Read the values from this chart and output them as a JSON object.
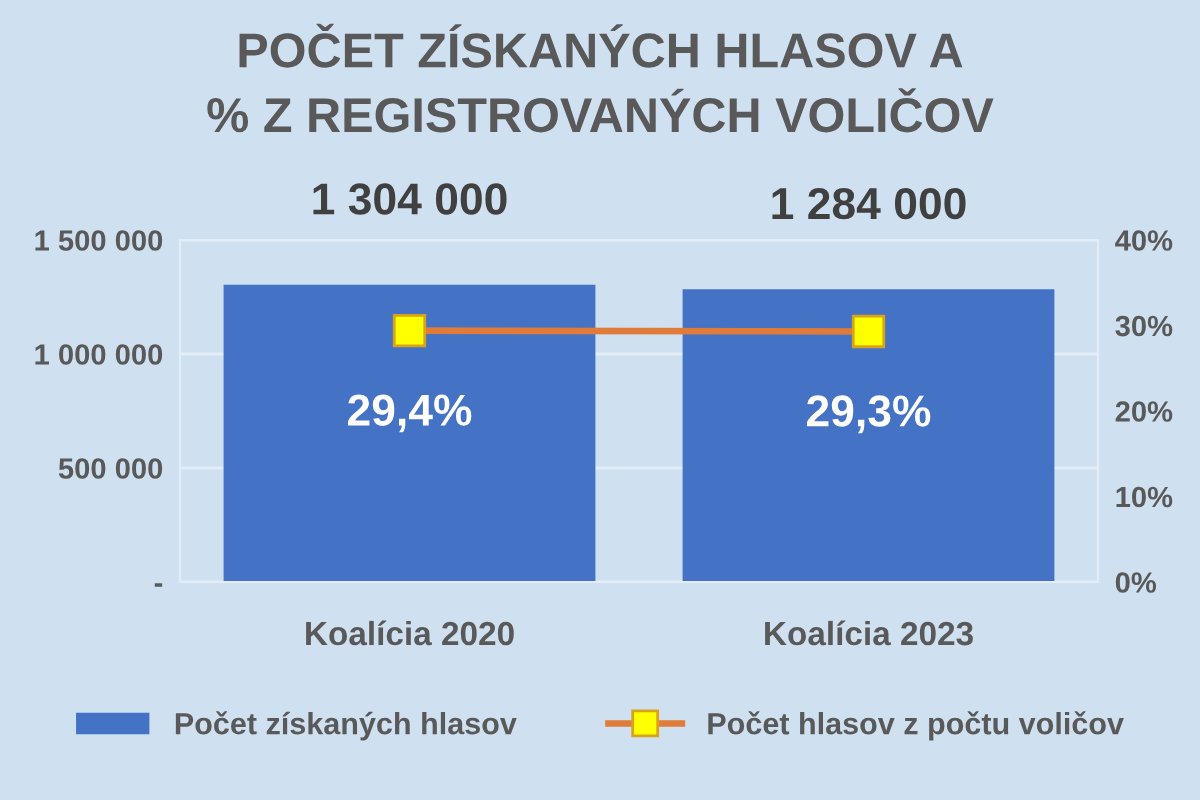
{
  "chart_data": {
    "type": "bar",
    "title": "POČET ZÍSKANÝCH HLASOV A\n% Z REGISTROVANÝCH VOLIČOV",
    "categories": [
      "Koalícia 2020",
      "Koalícia 2023"
    ],
    "series": [
      {
        "name": "Počet získaných hlasov",
        "color": "#4472c4",
        "values": [
          1304000,
          1284000
        ],
        "value_labels": [
          "1 304 000",
          "1 284 000"
        ]
      },
      {
        "name": "Počet hlasov z počtu voličov",
        "type": "line",
        "axis": "y2",
        "color": "#e07b39",
        "colors": [
          "#ffff00",
          "#ffff00"
        ],
        "values": [
          29.4,
          29.3
        ],
        "value_labels": [
          "29,4%",
          "29,3%"
        ]
      }
    ],
    "ylim": [
      0,
      1500000
    ],
    "yticks": [
      {
        "value": 0,
        "label": "-"
      },
      {
        "value": 500000,
        "label": "500 000"
      },
      {
        "value": 1000000,
        "label": "1 000 000"
      },
      {
        "value": 1500000,
        "label": "1 500 000"
      }
    ],
    "y2lim": [
      0,
      40
    ],
    "y2ticks": [
      {
        "value": 0,
        "label": "0%"
      },
      {
        "value": 10,
        "label": "10%"
      },
      {
        "value": 20,
        "label": "20%"
      },
      {
        "value": 30,
        "label": "30%"
      },
      {
        "value": 40,
        "label": "40%"
      }
    ],
    "grid": "y",
    "legend": "bottom",
    "marker": "square",
    "line_style": "solid"
  }
}
